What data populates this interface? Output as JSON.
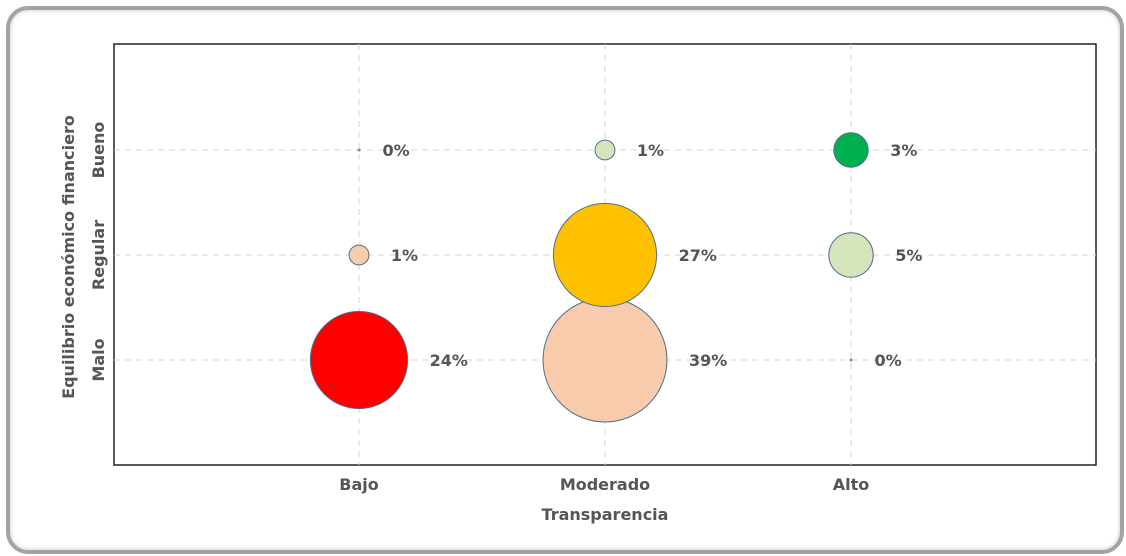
{
  "chart_data": {
    "type": "scatter",
    "title": "",
    "xlabel": "Transparencia",
    "ylabel": "Equilibrio económico financiero",
    "x_categories": [
      "Bajo",
      "Moderado",
      "Alto"
    ],
    "y_categories": [
      "Malo",
      "Regular",
      "Bueno"
    ],
    "grid": true,
    "points": [
      {
        "x": "Bajo",
        "y": "Bueno",
        "value": 0,
        "label": "0%",
        "color": "#7f8f7f"
      },
      {
        "x": "Moderado",
        "y": "Bueno",
        "value": 1,
        "label": "1%",
        "color": "#d6e4bc"
      },
      {
        "x": "Alto",
        "y": "Bueno",
        "value": 3,
        "label": "3%",
        "color": "#00b050"
      },
      {
        "x": "Bajo",
        "y": "Regular",
        "value": 1,
        "label": "1%",
        "color": "#f8cbad"
      },
      {
        "x": "Moderado",
        "y": "Regular",
        "value": 27,
        "label": "27%",
        "color": "#ffc000"
      },
      {
        "x": "Alto",
        "y": "Regular",
        "value": 5,
        "label": "5%",
        "color": "#d6e4bc"
      },
      {
        "x": "Bajo",
        "y": "Malo",
        "value": 24,
        "label": "24%",
        "color": "#ff0000"
      },
      {
        "x": "Moderado",
        "y": "Malo",
        "value": 39,
        "label": "39%",
        "color": "#f8cbad"
      },
      {
        "x": "Alto",
        "y": "Malo",
        "value": 0,
        "label": "0%",
        "color": "#7f8f7f"
      }
    ]
  }
}
